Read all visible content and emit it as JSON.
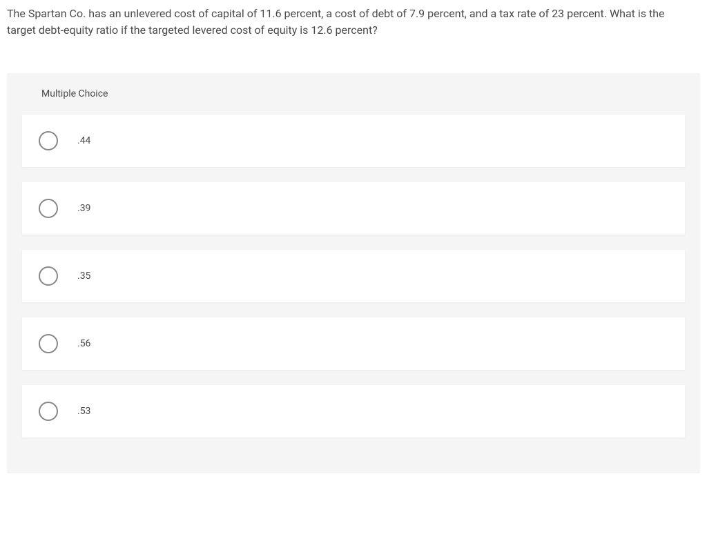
{
  "question": {
    "text": "The Spartan Co. has an unlevered cost of capital of 11.6 percent, a cost of debt of 7.9 percent, and a tax rate of 23 percent. What is the target debt-equity ratio if the targeted levered cost of equity is 12.6 percent?"
  },
  "multipleChoice": {
    "header": "Multiple Choice",
    "options": [
      {
        "label": ".44"
      },
      {
        "label": ".39"
      },
      {
        "label": ".35"
      },
      {
        "label": ".56"
      },
      {
        "label": ".53"
      }
    ]
  },
  "styling": {
    "background_color": "#ffffff",
    "mc_background_color": "#f5f5f5",
    "option_background_color": "#ffffff",
    "text_color": "#4a4a4a",
    "radio_border_color": "#888888",
    "question_fontsize": 16,
    "header_fontsize": 14,
    "option_fontsize": 14,
    "radio_size": 28
  }
}
